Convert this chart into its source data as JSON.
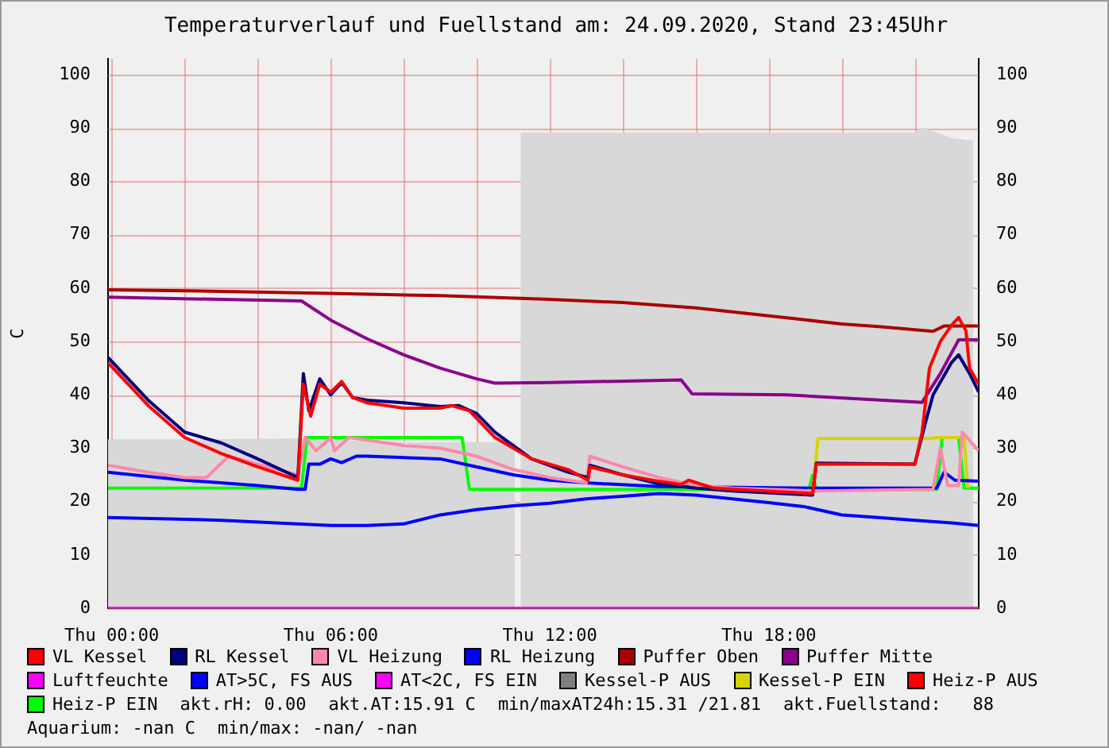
{
  "chart_data": {
    "type": "line",
    "title": "Temperaturverlauf und Fuellstand am: 24.09.2020, Stand 23:45Uhr",
    "ylabel": "C",
    "xlim": [
      "2020-09-23T23:54",
      "2020-09-24T23:45"
    ],
    "xticks": [
      {
        "value": "2020-09-24T00:00",
        "label": "Thu 00:00"
      },
      {
        "value": "2020-09-24T02:00",
        "label": null
      },
      {
        "value": "2020-09-24T04:00",
        "label": null
      },
      {
        "value": "2020-09-24T06:00",
        "label": "Thu 06:00"
      },
      {
        "value": "2020-09-24T08:00",
        "label": null
      },
      {
        "value": "2020-09-24T10:00",
        "label": null
      },
      {
        "value": "2020-09-24T12:00",
        "label": "Thu 12:00"
      },
      {
        "value": "2020-09-24T14:00",
        "label": null
      },
      {
        "value": "2020-09-24T16:00",
        "label": null
      },
      {
        "value": "2020-09-24T18:00",
        "label": "Thu 18:00"
      },
      {
        "value": "2020-09-24T20:00",
        "label": null
      },
      {
        "value": "2020-09-24T22:00",
        "label": null
      }
    ],
    "ylim": [
      0,
      103
    ],
    "yticks": [
      0,
      10,
      20,
      30,
      40,
      50,
      60,
      70,
      80,
      90,
      100
    ],
    "y2lim": [
      0,
      103
    ],
    "y2ticks": [
      0,
      10,
      20,
      30,
      40,
      50,
      60,
      70,
      80,
      90,
      100
    ],
    "grid": true,
    "legend": "bottom",
    "marker": "none",
    "line_style": "solid",
    "series": [
      {
        "name": "VL Kessel",
        "color": "#ff0000",
        "x": [
          "2020-09-23T23:54",
          "2020-09-24T01:00",
          "2020-09-24T02:00",
          "2020-09-24T03:00",
          "2020-09-24T04:00",
          "2020-09-24T05:06",
          "2020-09-24T05:15",
          "2020-09-24T05:27",
          "2020-09-24T05:42",
          "2020-09-24T06:00",
          "2020-09-24T06:18",
          "2020-09-24T06:36",
          "2020-09-24T07:00",
          "2020-09-24T08:00",
          "2020-09-24T09:00",
          "2020-09-24T09:18",
          "2020-09-24T09:48",
          "2020-09-24T10:30",
          "2020-09-24T11:30",
          "2020-09-24T12:30",
          "2020-09-24T13:03",
          "2020-09-24T13:06",
          "2020-09-24T14:00",
          "2020-09-24T15:00",
          "2020-09-24T15:36",
          "2020-09-24T15:48",
          "2020-09-24T16:30",
          "2020-09-24T19:12",
          "2020-09-24T19:18",
          "2020-09-24T22:00",
          "2020-09-24T22:12",
          "2020-09-24T22:24",
          "2020-09-24T22:42",
          "2020-09-24T23:00",
          "2020-09-24T23:12",
          "2020-09-24T23:24",
          "2020-09-24T23:30",
          "2020-09-24T23:45"
        ],
        "values": [
          46,
          38,
          32,
          29,
          26.5,
          24,
          42,
          36,
          42,
          40.5,
          42.5,
          39.5,
          38.5,
          37.5,
          37.5,
          38,
          37,
          32,
          28,
          26,
          24,
          26.5,
          25,
          23.8,
          23.2,
          24,
          22.5,
          21.5,
          27,
          27,
          33,
          45,
          50,
          53,
          54.5,
          52,
          45,
          42
        ]
      },
      {
        "name": "RL Kessel",
        "color": "#000080",
        "x": [
          "2020-09-23T23:54",
          "2020-09-24T01:00",
          "2020-09-24T02:00",
          "2020-09-24T03:00",
          "2020-09-24T04:00",
          "2020-09-24T05:06",
          "2020-09-24T05:15",
          "2020-09-24T05:24",
          "2020-09-24T05:42",
          "2020-09-24T06:00",
          "2020-09-24T06:18",
          "2020-09-24T06:36",
          "2020-09-24T07:00",
          "2020-09-24T08:00",
          "2020-09-24T09:00",
          "2020-09-24T09:30",
          "2020-09-24T10:00",
          "2020-09-24T10:30",
          "2020-09-24T11:30",
          "2020-09-24T12:30",
          "2020-09-24T13:03",
          "2020-09-24T13:06",
          "2020-09-24T14:00",
          "2020-09-24T15:00",
          "2020-09-24T16:00",
          "2020-09-24T17:00",
          "2020-09-24T19:12",
          "2020-09-24T19:18",
          "2020-09-24T22:00",
          "2020-09-24T22:18",
          "2020-09-24T22:30",
          "2020-09-24T23:00",
          "2020-09-24T23:12",
          "2020-09-24T23:30",
          "2020-09-24T23:45"
        ],
        "values": [
          47,
          39,
          33,
          31,
          28,
          24.5,
          44,
          37,
          43,
          40,
          42.3,
          39.5,
          39,
          38.5,
          37.8,
          38,
          36.5,
          33,
          28,
          25.5,
          24.5,
          26.8,
          25,
          23.3,
          22.5,
          22,
          21.2,
          27.2,
          27,
          35,
          40,
          46,
          47.5,
          44,
          40.5
        ]
      },
      {
        "name": "VL Heizung",
        "color": "#ff88aa",
        "x": [
          "2020-09-23T23:54",
          "2020-09-24T01:00",
          "2020-09-24T02:00",
          "2020-09-24T02:36",
          "2020-09-24T03:12",
          "2020-09-24T04:00",
          "2020-09-24T05:06",
          "2020-09-24T05:18",
          "2020-09-24T05:36",
          "2020-09-24T06:00",
          "2020-09-24T06:06",
          "2020-09-24T06:30",
          "2020-09-24T08:00",
          "2020-09-24T09:00",
          "2020-09-24T10:00",
          "2020-09-24T11:00",
          "2020-09-24T12:00",
          "2020-09-24T13:00",
          "2020-09-24T13:06",
          "2020-09-24T14:00",
          "2020-09-24T15:00",
          "2020-09-24T16:00",
          "2020-09-24T17:00",
          "2020-09-24T19:18",
          "2020-09-24T22:30",
          "2020-09-24T22:42",
          "2020-09-24T22:54",
          "2020-09-24T23:12",
          "2020-09-24T23:18",
          "2020-09-24T23:45"
        ],
        "values": [
          26.8,
          25.5,
          24.5,
          24.5,
          28.5,
          27,
          25,
          32,
          29.5,
          32,
          29.5,
          32,
          30.5,
          30,
          28.5,
          26,
          24.5,
          23.5,
          28.5,
          26.5,
          24.5,
          23,
          22.5,
          22,
          22.3,
          30,
          23,
          23,
          33,
          29.5
        ]
      },
      {
        "name": "RL Heizung",
        "color": "#0000ff",
        "x": [
          "2020-09-23T23:54",
          "2020-09-24T02:00",
          "2020-09-24T04:00",
          "2020-09-24T05:06",
          "2020-09-24T05:18",
          "2020-09-24T05:24",
          "2020-09-24T05:42",
          "2020-09-24T06:00",
          "2020-09-24T06:18",
          "2020-09-24T06:42",
          "2020-09-24T07:00",
          "2020-09-24T09:00",
          "2020-09-24T10:00",
          "2020-09-24T11:00",
          "2020-09-24T12:00",
          "2020-09-24T13:00",
          "2020-09-24T15:00",
          "2020-09-24T19:18",
          "2020-09-24T22:36",
          "2020-09-24T22:48",
          "2020-09-24T23:06",
          "2020-09-24T23:45"
        ],
        "values": [
          25.5,
          24,
          23,
          22.3,
          22.3,
          27,
          27,
          28,
          27.3,
          28.5,
          28.5,
          28,
          26.5,
          25,
          24,
          23.5,
          22.8,
          22.5,
          22.5,
          25.5,
          24,
          23.8
        ]
      },
      {
        "name": "Puffer Oben",
        "color": "#aa0000",
        "x": [
          "2020-09-23T23:54",
          "2020-09-24T03:00",
          "2020-09-24T06:00",
          "2020-09-24T09:00",
          "2020-09-24T12:00",
          "2020-09-24T14:00",
          "2020-09-24T16:00",
          "2020-09-24T18:00",
          "2020-09-24T20:00",
          "2020-09-24T21:00",
          "2020-09-24T22:00",
          "2020-09-24T22:30",
          "2020-09-24T22:48",
          "2020-09-24T23:45"
        ],
        "values": [
          59.7,
          59.4,
          59,
          58.6,
          57.9,
          57.3,
          56.3,
          54.8,
          53.3,
          52.8,
          52.2,
          51.9,
          52.9,
          52.9
        ]
      },
      {
        "name": "Puffer Mitte",
        "color": "#8b008b",
        "x": [
          "2020-09-23T23:54",
          "2020-09-24T05:12",
          "2020-09-24T06:00",
          "2020-09-24T07:00",
          "2020-09-24T08:00",
          "2020-09-24T09:00",
          "2020-09-24T10:00",
          "2020-09-24T10:30",
          "2020-09-24T12:00",
          "2020-09-24T15:36",
          "2020-09-24T15:54",
          "2020-09-24T18:30",
          "2020-09-24T22:12",
          "2020-09-24T22:42",
          "2020-09-24T23:12",
          "2020-09-24T23:45"
        ],
        "values": [
          58.3,
          57.6,
          54,
          50.5,
          47.5,
          45,
          43,
          42.2,
          42.3,
          42.8,
          40.2,
          40,
          38.6,
          44,
          50.3,
          50.3
        ]
      },
      {
        "name": "Luftfeuchte",
        "color": "#ff00ff",
        "x": [
          "2020-09-23T23:54",
          "2020-09-24T23:45"
        ],
        "values": [
          0,
          0
        ]
      },
      {
        "name": "AT>5C, FS AUS",
        "color": "#0000ff",
        "x": [
          "2020-09-23T23:54",
          "2020-09-24T03:00",
          "2020-09-24T06:00",
          "2020-09-24T07:00",
          "2020-09-24T08:00",
          "2020-09-24T09:00",
          "2020-09-24T10:00",
          "2020-09-24T11:00",
          "2020-09-24T12:00",
          "2020-09-24T13:00",
          "2020-09-24T14:00",
          "2020-09-24T15:00",
          "2020-09-24T16:00",
          "2020-09-24T17:00",
          "2020-09-24T18:00",
          "2020-09-24T19:00",
          "2020-09-24T20:00",
          "2020-09-24T21:00",
          "2020-09-24T22:00",
          "2020-09-24T23:00",
          "2020-09-24T23:45"
        ],
        "values": [
          17,
          16.5,
          15.5,
          15.5,
          15.8,
          17.5,
          18.5,
          19.2,
          19.7,
          20.5,
          21,
          21.5,
          21.2,
          20.5,
          19.8,
          19,
          17.5,
          17,
          16.5,
          16,
          15.5
        ]
      },
      {
        "name": "AT<2C, FS EIN",
        "color": "#ff00ff"
      },
      {
        "name": "Kessel-P AUS",
        "color": "#808080"
      },
      {
        "name": "Kessel-P EIN",
        "color": "#d4d400",
        "x": [
          "2020-09-24T19:12",
          "2020-09-24T19:21",
          "2020-09-24T22:24",
          "2020-09-24T22:36",
          "2020-09-24T23:21",
          "2020-09-24T23:27"
        ],
        "values": [
          22,
          31.8,
          31.8,
          32,
          32,
          22.5
        ]
      },
      {
        "name": "Heiz-P AUS",
        "color": "#ff0000"
      },
      {
        "name": "Heiz-P EIN",
        "color": "#00ff00",
        "x": [
          "2020-09-23T23:54",
          "2020-09-24T05:12",
          "2020-09-24T05:21",
          "2020-09-24T09:36",
          "2020-09-24T09:48",
          "2020-09-24T19:06",
          "2020-09-24T19:12",
          "2020-09-24T19:18",
          "2020-09-24T22:36",
          "2020-09-24T22:45",
          "2020-09-24T23:12",
          "2020-09-24T23:21",
          "2020-09-24T23:45"
        ],
        "values": [
          22.5,
          22.5,
          32,
          32,
          22.3,
          22.3,
          25,
          22.3,
          22.3,
          32,
          32,
          22.5,
          22.5
        ]
      },
      {
        "type": "area",
        "color": "#d8d8d8",
        "x": [
          "2020-09-23T23:54",
          "2020-09-24T02:00",
          "2020-09-24T05:00",
          "2020-09-24T08:00",
          "2020-09-24T11:03",
          "2020-09-24T11:07",
          "2020-09-24T11:12",
          "2020-09-24T15:00",
          "2020-09-24T20:00",
          "2020-09-24T22:00",
          "2020-09-24T22:12",
          "2020-09-24T22:36",
          "2020-09-24T23:00",
          "2020-09-24T23:36"
        ],
        "values": [
          31.5,
          31.5,
          31.7,
          31,
          31,
          null,
          89,
          89,
          89,
          89,
          90,
          89,
          88,
          87.5
        ]
      }
    ],
    "annotations": [
      "akt.rH: 0.00",
      "akt.AT:15.91 C",
      "min/maxAT24h:15.31 /21.81",
      "akt.Fuellstand:   88",
      "Aquarium: -nan C",
      "min/max: -nan/ -nan"
    ]
  }
}
